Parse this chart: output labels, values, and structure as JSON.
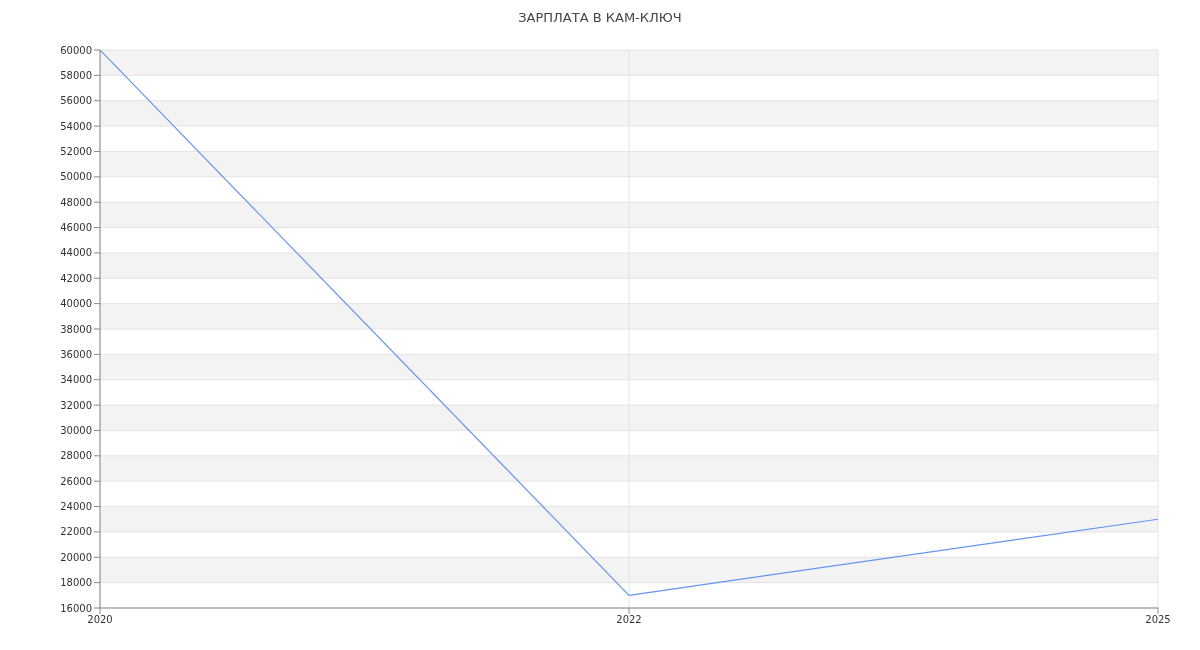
{
  "chart_data": {
    "type": "line",
    "title": "ЗАРПЛАТА В КАМ-КЛЮЧ",
    "categories": [
      "2020",
      "2022",
      "2025"
    ],
    "series": [
      {
        "color": "#6495ed",
        "values": [
          60000,
          17000,
          23000
        ]
      }
    ],
    "ylim": [
      16000,
      60000
    ],
    "yticks": [
      16000,
      18000,
      20000,
      22000,
      24000,
      26000,
      28000,
      30000,
      32000,
      34000,
      36000,
      38000,
      40000,
      42000,
      44000,
      46000,
      48000,
      50000,
      52000,
      54000,
      56000,
      58000,
      60000
    ],
    "grid": true,
    "marker": "none",
    "legend": false
  }
}
